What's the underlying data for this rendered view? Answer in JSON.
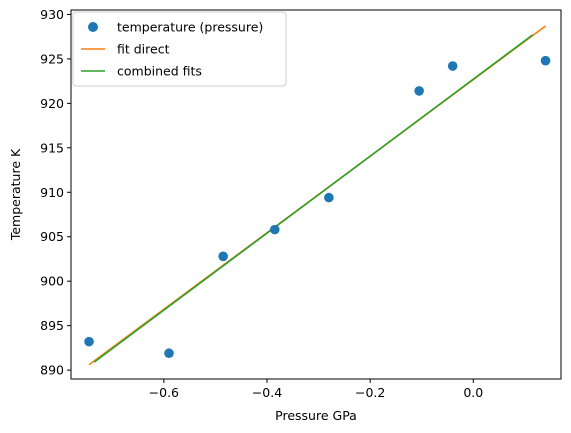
{
  "chart_data": {
    "type": "scatter",
    "xlabel": "Pressure GPa",
    "ylabel": "Temperature K",
    "xlim": [
      -0.78,
      0.17
    ],
    "ylim": [
      889,
      930.5
    ],
    "xticks": [
      -0.6,
      -0.4,
      -0.2,
      0.0
    ],
    "yticks": [
      890,
      895,
      900,
      905,
      910,
      915,
      920,
      925,
      930
    ],
    "xtick_labels": [
      "−0.6",
      "−0.4",
      "−0.2",
      "0.0"
    ],
    "ytick_labels": [
      "890",
      "895",
      "900",
      "905",
      "910",
      "915",
      "920",
      "925",
      "930"
    ],
    "grid": false,
    "legend_position": "top-left",
    "series": [
      {
        "name": "temperature (pressure)",
        "kind": "scatter",
        "color": "#1f77b4",
        "x": [
          -0.745,
          -0.59,
          -0.485,
          -0.385,
          -0.28,
          -0.105,
          -0.04,
          0.14
        ],
        "y": [
          893.2,
          891.9,
          902.8,
          905.8,
          909.4,
          921.4,
          924.2,
          924.8
        ]
      },
      {
        "name": "fit direct",
        "kind": "line",
        "color": "#ff7f0e",
        "x": [
          -0.745,
          0.14
        ],
        "y": [
          890.6,
          928.7
        ]
      },
      {
        "name": "combined fits",
        "kind": "line",
        "color": "#2ca02c",
        "x": [
          -0.735,
          0.115
        ],
        "y": [
          890.9,
          927.7
        ]
      }
    ]
  }
}
